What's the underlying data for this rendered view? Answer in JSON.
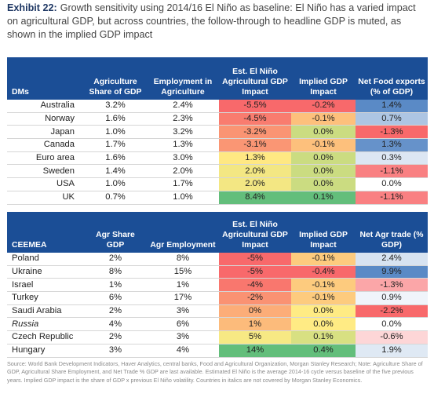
{
  "caption": {
    "exhibit": "Exhibit 22:",
    "text": "Growth sensitivity using 2014/16 El Niño as baseline: El Niño has a varied impact on agricultural GDP, but across countries, the follow-through to headline GDP is muted, as shown in the implied GDP impact"
  },
  "dm_table": {
    "headers": [
      "DMs",
      "Agriculture Share of GDP",
      "Employment in Agriculture",
      "Est. El Niño Agricultural GDP Impact",
      "Implied GDP Impact",
      "Net Food exports (% of GDP)"
    ],
    "rows": [
      {
        "country": "Australia",
        "agri_share": "3.2%",
        "employment": "2.4%",
        "agri_impact": "-5.5%",
        "gdp_impact": "-0.2%",
        "net_exports": "1.4%"
      },
      {
        "country": "Norway",
        "agri_share": "1.6%",
        "employment": "2.3%",
        "agri_impact": "-4.5%",
        "gdp_impact": "-0.1%",
        "net_exports": "0.7%"
      },
      {
        "country": "Japan",
        "agri_share": "1.0%",
        "employment": "3.2%",
        "agri_impact": "-3.2%",
        "gdp_impact": "0.0%",
        "net_exports": "-1.3%"
      },
      {
        "country": "Canada",
        "agri_share": "1.7%",
        "employment": "1.3%",
        "agri_impact": "-3.1%",
        "gdp_impact": "-0.1%",
        "net_exports": "1.3%"
      },
      {
        "country": "Euro area",
        "agri_share": "1.6%",
        "employment": "3.0%",
        "agri_impact": "1.3%",
        "gdp_impact": "0.0%",
        "net_exports": "0.3%"
      },
      {
        "country": "Sweden",
        "agri_share": "1.4%",
        "employment": "2.0%",
        "agri_impact": "2.0%",
        "gdp_impact": "0.0%",
        "net_exports": "-1.1%"
      },
      {
        "country": "USA",
        "agri_share": "1.0%",
        "employment": "1.7%",
        "agri_impact": "2.0%",
        "gdp_impact": "0.0%",
        "net_exports": "0.0%"
      },
      {
        "country": "UK",
        "agri_share": "0.7%",
        "employment": "1.0%",
        "agri_impact": "8.4%",
        "gdp_impact": "0.1%",
        "net_exports": "-1.1%"
      }
    ]
  },
  "ceemea_table": {
    "headers": [
      "CEEMEA",
      "Agr Share GDP",
      "Agr Employment",
      "Est. El Niño Agricultural GDP Impact",
      "Implied GDP Impact",
      "Net Agr trade (% GDP)"
    ],
    "rows": [
      {
        "country": "Poland",
        "italic": false,
        "agri_share": "2%",
        "employment": "8%",
        "agri_impact": "-5%",
        "gdp_impact": "-0.1%",
        "net_exports": "2.4%"
      },
      {
        "country": "Ukraine",
        "italic": false,
        "agri_share": "8%",
        "employment": "15%",
        "agri_impact": "-5%",
        "gdp_impact": "-0.4%",
        "net_exports": "9.9%"
      },
      {
        "country": "Israel",
        "italic": false,
        "agri_share": "1%",
        "employment": "1%",
        "agri_impact": "-4%",
        "gdp_impact": "-0.1%",
        "net_exports": "-1.3%"
      },
      {
        "country": "Turkey",
        "italic": false,
        "agri_share": "6%",
        "employment": "17%",
        "agri_impact": "-2%",
        "gdp_impact": "-0.1%",
        "net_exports": "0.9%"
      },
      {
        "country": "Saudi Arabia",
        "italic": false,
        "agri_share": "2%",
        "employment": "3%",
        "agri_impact": "0%",
        "gdp_impact": "0.0%",
        "net_exports": "-2.2%"
      },
      {
        "country": "Russia",
        "italic": true,
        "agri_share": "4%",
        "employment": "6%",
        "agri_impact": "1%",
        "gdp_impact": "0.0%",
        "net_exports": "0.0%"
      },
      {
        "country": "Czech Republic",
        "italic": false,
        "agri_share": "2%",
        "employment": "3%",
        "agri_impact": "5%",
        "gdp_impact": "0.1%",
        "net_exports": "-0.6%"
      },
      {
        "country": "Hungary",
        "italic": false,
        "agri_share": "3%",
        "employment": "4%",
        "agri_impact": "14%",
        "gdp_impact": "0.4%",
        "net_exports": "1.9%"
      }
    ]
  },
  "source_note": "Source: World Bank Development Indicators, Haver Analytics, central banks, Food and Agricultural Organization, Morgan Stanley Research; Note: Agriculture Share of GDP, Agricultural Share Employment, and Net Trade % GDP are last available. Estimated El Niño is the average 2014-16 cycle versus baseline of the five previous years. Implied GDP impact is the share of GDP x previous El Niño volatility. Countries in italics are not covered by Morgan Stanley Economics.",
  "colors": {
    "header_blue": "#1b4e96",
    "red": "#f8696b",
    "amber": "#ffeb84",
    "green": "#63be7b",
    "blue": "#5a8ac6"
  }
}
